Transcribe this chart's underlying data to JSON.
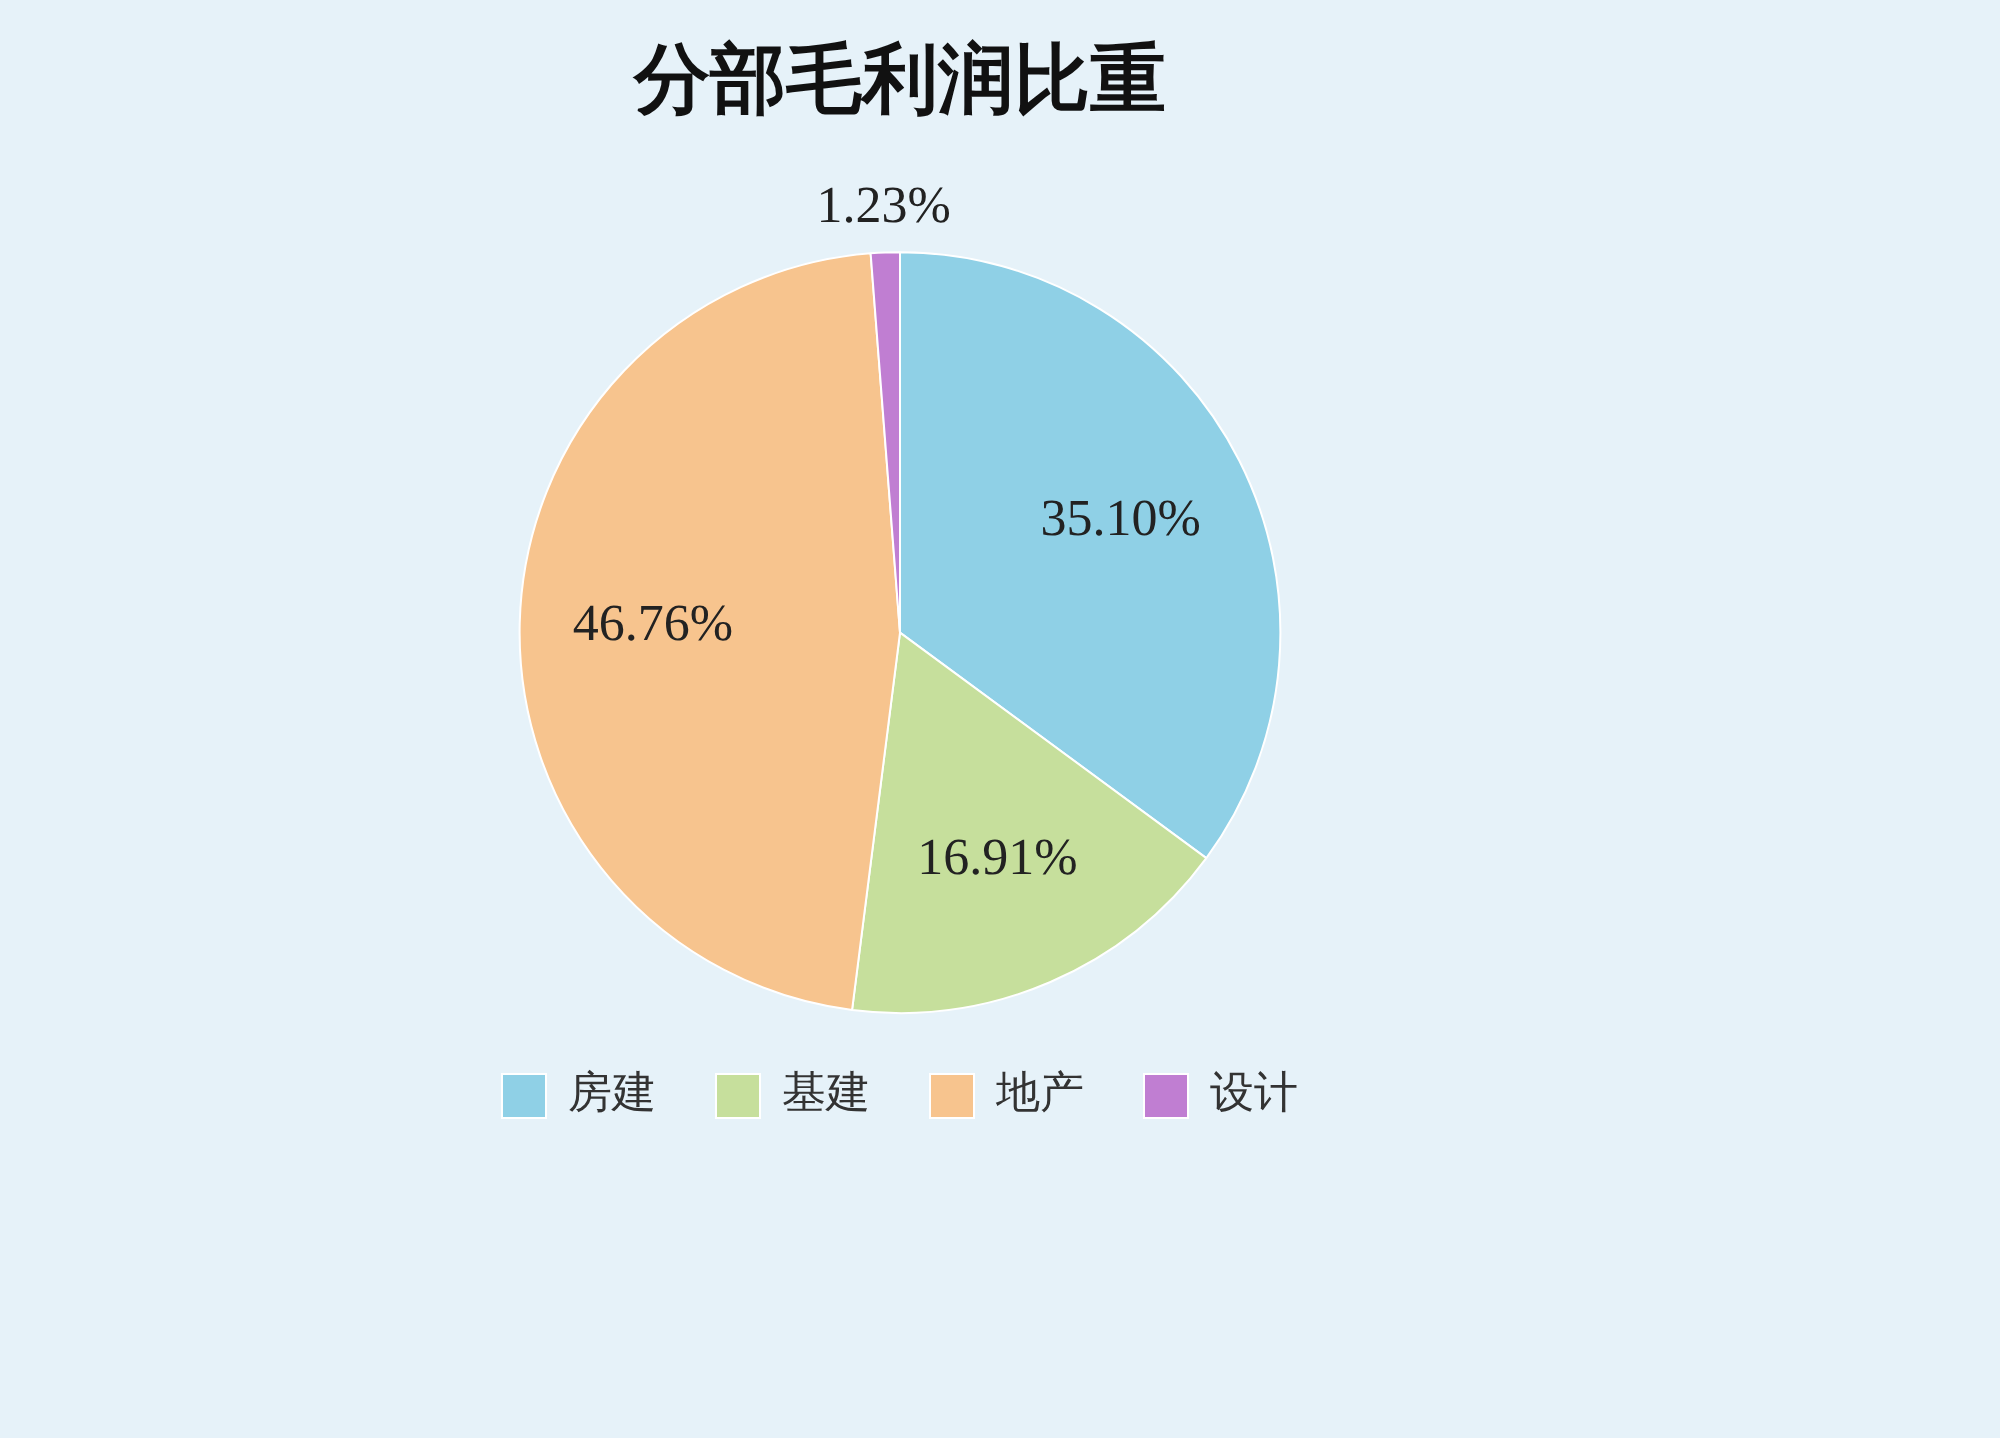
{
  "chart_data": {
    "type": "pie",
    "title": "分部毛利润比重",
    "categories": [
      "房建",
      "基建",
      "地产",
      "设计"
    ],
    "values": [
      35.1,
      16.91,
      46.76,
      1.23
    ],
    "value_labels": [
      "35.10%",
      "16.91%",
      "46.76%",
      "1.23%"
    ],
    "colors": [
      "#8fd0e6",
      "#c6df9c",
      "#f7c48e",
      "#c07ed2"
    ],
    "legend": "bottom"
  }
}
